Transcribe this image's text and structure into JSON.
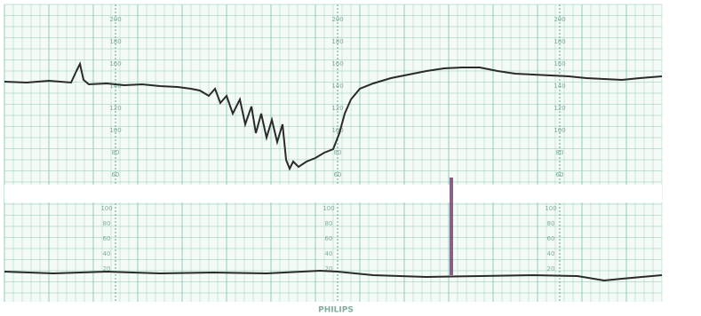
{
  "brand": "PHILIPS",
  "heart_rate_scale": {
    "labels": [
      200,
      180,
      160,
      140,
      120,
      100,
      80,
      60
    ]
  },
  "uterine_scale": {
    "labels": [
      100,
      80,
      60,
      40,
      20
    ]
  }
}
